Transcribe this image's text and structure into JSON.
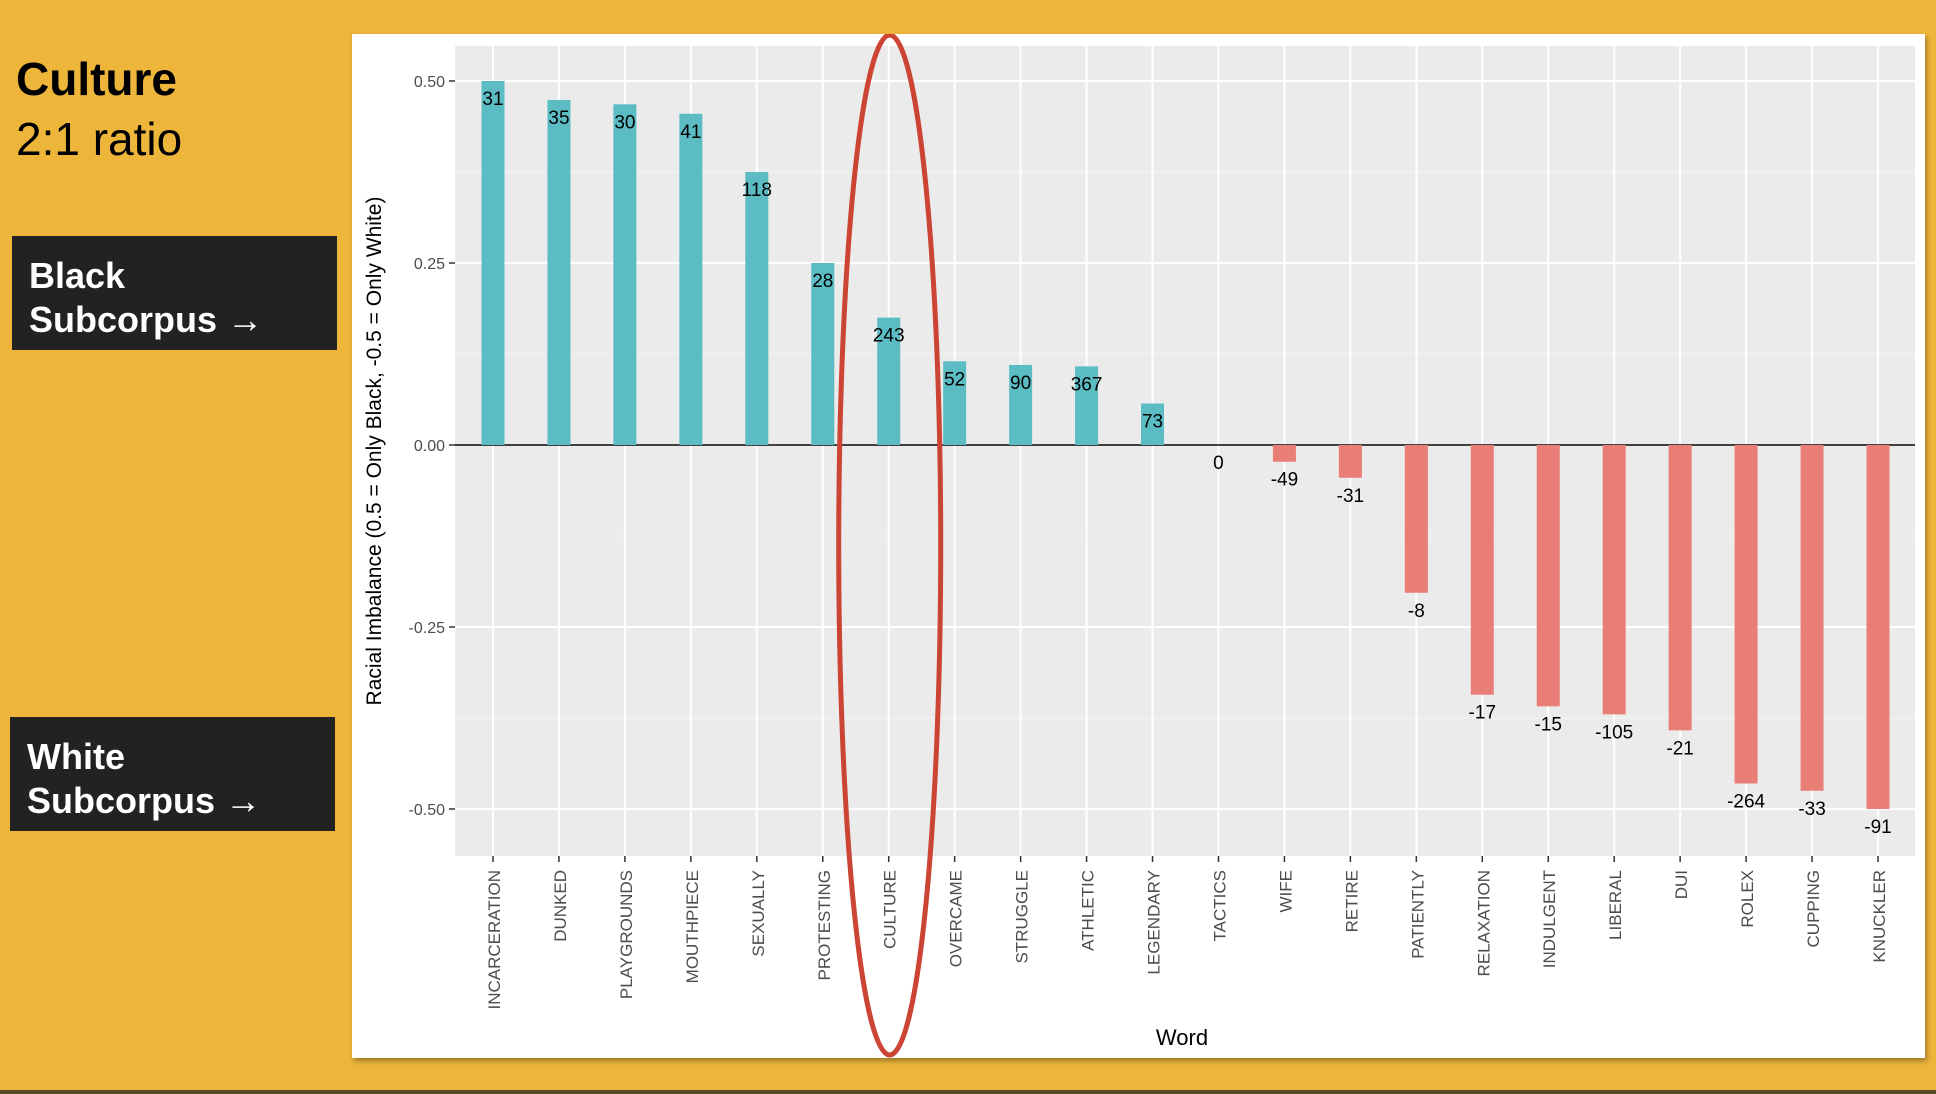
{
  "slide": {
    "title": "Culture",
    "subtitle": "2:1 ratio",
    "black_label_line1": "Black",
    "black_label_line2": "Subcorpus →",
    "white_label_line1": "White",
    "white_label_line2": "Subcorpus →"
  },
  "colors": {
    "background": "#EDB63B",
    "positive_bar": "#5BBCC4",
    "negative_bar": "#E97E77",
    "panel": "#EBEBEB",
    "highlight": "#CC4433"
  },
  "chart_data": {
    "type": "bar",
    "xlabel": "Word",
    "ylabel": "Racial Imbalance (0.5 = Only Black, -0.5 = Only White)",
    "ylim": [
      -0.55,
      0.55
    ],
    "yticks": [
      -0.5,
      -0.25,
      0.0,
      0.25,
      0.5
    ],
    "ytick_labels": [
      "-0.50",
      "-0.25",
      "0.00",
      "0.25",
      "0.50"
    ],
    "categories": [
      "INCARCERATION",
      "DUNKED",
      "PLAYGROUNDS",
      "MOUTHPIECE",
      "SEXUALLY",
      "PROTESTING",
      "CULTURE",
      "OVERCAME",
      "STRUGGLE",
      "ATHLETIC",
      "LEGENDARY",
      "TACTICS",
      "WIFE",
      "RETIRE",
      "PATIENTLY",
      "RELAXATION",
      "INDULGENT",
      "LIBERAL",
      "DUI",
      "ROLEX",
      "CUPPING",
      "KNUCKLER"
    ],
    "values": [
      0.5,
      0.474,
      0.468,
      0.455,
      0.375,
      0.25,
      0.175,
      0.115,
      0.11,
      0.108,
      0.057,
      0.0,
      -0.023,
      -0.045,
      -0.203,
      -0.343,
      -0.359,
      -0.37,
      -0.392,
      -0.465,
      -0.475,
      -0.5
    ],
    "labels": [
      "31",
      "35",
      "30",
      "41",
      "118",
      "28",
      "243",
      "52",
      "90",
      "367",
      "73",
      "0",
      "-49",
      "-31",
      "-8",
      "-17",
      "-15",
      "-105",
      "-21",
      "-264",
      "-33",
      "-91"
    ],
    "highlight": "CULTURE",
    "grid": true
  }
}
